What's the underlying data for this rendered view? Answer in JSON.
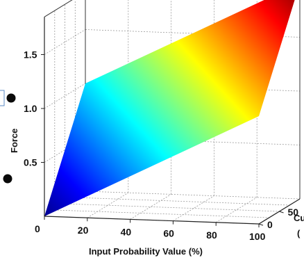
{
  "chart_data": {
    "type": "surface",
    "colormap": "jet",
    "x_axis": {
      "label": "Input Probability Value (%)",
      "ticks": [
        0,
        20,
        40,
        60,
        80,
        100
      ],
      "range": [
        0,
        100
      ]
    },
    "y_axis": {
      "label_partial": "Cu",
      "label_partial_second_line": "(",
      "ticks": [
        0,
        50
      ],
      "range": [
        0,
        100
      ]
    },
    "z_axis": {
      "label": "Force",
      "ticks": [
        0.5,
        1.0,
        1.5
      ],
      "tick_labels": [
        "0.5",
        "1.0",
        "1.5"
      ],
      "range": [
        0,
        1.5
      ]
    },
    "surface": {
      "x": [
        0,
        100
      ],
      "y": [
        0,
        100
      ],
      "z": [
        [
          0.0,
          1.0
        ],
        [
          1.0,
          2.0
        ]
      ]
    },
    "grid": true
  }
}
